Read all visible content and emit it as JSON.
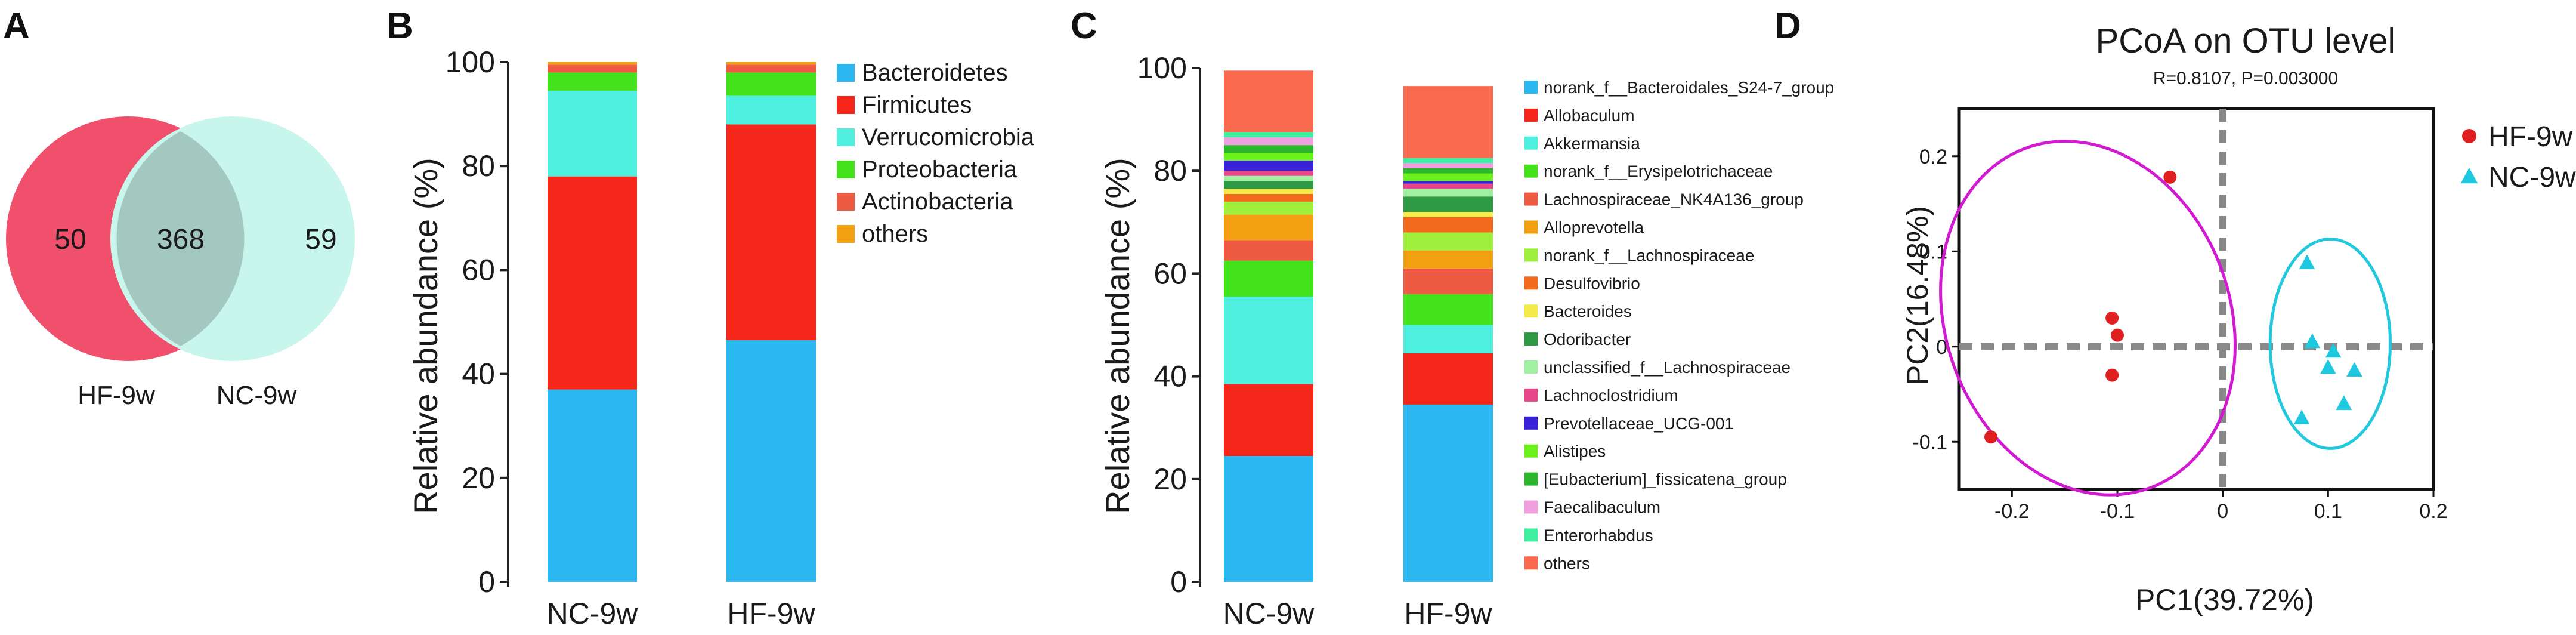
{
  "panels": {
    "a": "A",
    "b": "B",
    "c": "C",
    "d": "D"
  },
  "venn": {
    "left_label": "HF-9w",
    "right_label": "NC-9w",
    "left_only": "50",
    "shared": "368",
    "right_only": "59",
    "left_color": "#f0506b",
    "right_color": "#c8f5ec",
    "overlap_color": "#a3c8c0"
  },
  "chart_data": [
    {
      "type": "bar",
      "panel": "B",
      "stacked": true,
      "ylabel": "Relative abundance (%)",
      "ylim": [
        0,
        100
      ],
      "yticks": [
        "0",
        "20",
        "40",
        "60",
        "80",
        "100"
      ],
      "categories": [
        "NC-9w",
        "HF-9w"
      ],
      "series": [
        {
          "name": "Bacteroidetes",
          "color": "#2bb7ef",
          "values": [
            37,
            46.5
          ]
        },
        {
          "name": "Firmicutes",
          "color": "#f5261a",
          "values": [
            41,
            41.5
          ]
        },
        {
          "name": "Verrucomicrobia",
          "color": "#4ff0e0",
          "values": [
            16.5,
            5.5
          ]
        },
        {
          "name": "Proteobacteria",
          "color": "#44e21a",
          "values": [
            3.5,
            4.5
          ]
        },
        {
          "name": "Actinobacteria",
          "color": "#ef5a42",
          "values": [
            1.5,
            1.5
          ]
        },
        {
          "name": "others",
          "color": "#f2a012",
          "values": [
            0.5,
            0.5
          ]
        }
      ]
    },
    {
      "type": "bar",
      "panel": "C",
      "stacked": true,
      "ylabel": "Relative abundance (%)",
      "ylim": [
        0,
        100
      ],
      "yticks": [
        "0",
        "20",
        "40",
        "60",
        "80",
        "100"
      ],
      "categories": [
        "NC-9w",
        "HF-9w"
      ],
      "series": [
        {
          "name": "norank_f__Bacteroidales_S24-7_group",
          "color": "#2bb7ef",
          "values": [
            24.5,
            34.5
          ]
        },
        {
          "name": "Allobaculum",
          "color": "#f5261a",
          "values": [
            14,
            10
          ]
        },
        {
          "name": "Akkermansia",
          "color": "#4ff0e0",
          "values": [
            17,
            5.5
          ]
        },
        {
          "name": "norank_f__Erysipelotrichaceae",
          "color": "#44e21a",
          "values": [
            7,
            6
          ]
        },
        {
          "name": "Lachnospiraceae_NK4A136_group",
          "color": "#ef5a42",
          "values": [
            4,
            5
          ]
        },
        {
          "name": "Alloprevotella",
          "color": "#f2a012",
          "values": [
            5,
            3.5
          ]
        },
        {
          "name": "norank_f__Lachnospiraceae",
          "color": "#9ef03c",
          "values": [
            2.5,
            3.5
          ]
        },
        {
          "name": "Desulfovibrio",
          "color": "#f26b1d",
          "values": [
            1.5,
            3
          ]
        },
        {
          "name": "Bacteroides",
          "color": "#f4ea4a",
          "values": [
            1,
            1
          ]
        },
        {
          "name": "Odoribacter",
          "color": "#2e9a44",
          "values": [
            1.5,
            3
          ]
        },
        {
          "name": "unclassified_f__Lachnospiraceae",
          "color": "#9ff0a0",
          "values": [
            1,
            1.5
          ]
        },
        {
          "name": "Lachnoclostridium",
          "color": "#e8468a",
          "values": [
            1,
            1
          ]
        },
        {
          "name": "Prevotellaceae_UCG-001",
          "color": "#3a23d6",
          "values": [
            2,
            0.5
          ]
        },
        {
          "name": "Alistipes",
          "color": "#6af01a",
          "values": [
            1.5,
            1.5
          ]
        },
        {
          "name": "[Eubacterium]_fissicatena_group",
          "color": "#2ab52a",
          "values": [
            1.5,
            1
          ]
        },
        {
          "name": "Faecalibaculum",
          "color": "#f0a0e0",
          "values": [
            1.5,
            1
          ]
        },
        {
          "name": "Enterorhabdus",
          "color": "#3ff0a0",
          "values": [
            1,
            1
          ]
        },
        {
          "name": "others",
          "color": "#fa6a4e",
          "values": [
            12,
            14
          ]
        }
      ]
    },
    {
      "type": "scatter",
      "panel": "D",
      "title": "PCoA on OTU level",
      "subtitle": "R=0.8107, P=0.003000",
      "xlabel": "PC1(39.72%)",
      "ylabel": "PC2(16.48%)",
      "xlim": [
        -0.25,
        0.2
      ],
      "ylim": [
        -0.15,
        0.25
      ],
      "xticks": [
        -0.2,
        -0.1,
        0,
        0.1,
        0.2
      ],
      "xtick_labels": [
        "-0.2",
        "-0.1",
        "0",
        "0.1",
        "0.2"
      ],
      "yticks": [
        -0.1,
        0,
        0.1,
        0.2
      ],
      "ytick_labels": [
        "-0.1",
        "0",
        "0.1",
        "0.2"
      ],
      "legend_position": "right",
      "series": [
        {
          "name": "HF-9w",
          "marker": "circle",
          "color": "#e02020",
          "ellipse_color": "#d11ad1",
          "x": [
            -0.05,
            -0.105,
            -0.1,
            -0.105,
            -0.22
          ],
          "y": [
            0.178,
            0.03,
            0.012,
            -0.03,
            -0.095
          ],
          "ellipse": {
            "cx": -0.128,
            "cy": 0.03,
            "rx": 0.135,
            "ry": 0.19,
            "rotate_deg": -20
          }
        },
        {
          "name": "NC-9w",
          "marker": "triangle",
          "color": "#1ec8e0",
          "ellipse_color": "#22c8dc",
          "x": [
            0.08,
            0.085,
            0.105,
            0.125,
            0.1,
            0.115,
            0.075
          ],
          "y": [
            0.088,
            0.005,
            -0.005,
            -0.025,
            -0.022,
            -0.06,
            -0.075
          ],
          "ellipse": {
            "cx": 0.102,
            "cy": 0.003,
            "rx": 0.057,
            "ry": 0.11,
            "rotate_deg": 0
          }
        }
      ]
    }
  ]
}
